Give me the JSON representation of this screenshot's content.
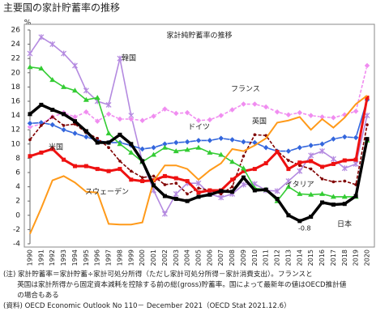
{
  "chart_data": {
    "type": "line",
    "title": "主要国の家計貯蓄率の推移",
    "subtitle": "家計純貯蓄率の推移",
    "y_unit": "%",
    "categories": [
      "1990",
      "1991",
      "1992",
      "1993",
      "1994",
      "1995",
      "1996",
      "1997",
      "1998",
      "1999",
      "2000",
      "2001",
      "2002",
      "2003",
      "2004",
      "2005",
      "2006",
      "2007",
      "2008",
      "2009",
      "2010",
      "2011",
      "2012",
      "2013",
      "2014",
      "2015",
      "2016",
      "2017",
      "2018",
      "2019",
      "2020"
    ],
    "ylim": [
      -4,
      26
    ],
    "yticks": [
      -4,
      -2,
      0,
      2,
      4,
      6,
      8,
      10,
      12,
      14,
      16,
      18,
      20,
      22,
      24,
      26
    ],
    "series": [
      {
        "name": "韓国",
        "color": "#b48ae0",
        "marker": "star",
        "values": [
          22.7,
          25,
          24,
          22.7,
          21,
          17.5,
          16,
          15.5,
          22,
          14,
          7.5,
          3.5,
          0.2,
          3,
          4.5,
          4.5,
          3,
          2.5,
          3,
          4.3,
          4.4,
          3.5,
          3.4,
          4.8,
          6.2,
          8.4,
          9.0,
          7.9,
          6.6,
          7.2,
          14
        ]
      },
      {
        "name": "フランス",
        "color": "#f08cf0",
        "marker": "diamond",
        "dash": true,
        "values": [
          12.4,
          12.8,
          13.8,
          14.4,
          13.8,
          14.5,
          13.2,
          14.2,
          13.5,
          13.5,
          13.3,
          13.9,
          14.9,
          14.3,
          14.4,
          13.3,
          13.4,
          14.0,
          14.8,
          15.6,
          15.6,
          15.2,
          14.5,
          14.1,
          14.4,
          14.0,
          13.8,
          13.7,
          14.1,
          14.6,
          21.0
        ]
      },
      {
        "name": "ドイツ",
        "color": "#3366dd",
        "marker": "diamond",
        "values": [
          12.9,
          13.0,
          12.7,
          12.0,
          11.5,
          11.0,
          10.5,
          10.2,
          10.2,
          9.8,
          9.3,
          9.5,
          10.0,
          10.2,
          10.3,
          10.5,
          10.5,
          10.8,
          10.6,
          10.3,
          10.2,
          9.5,
          9.0,
          9.0,
          9.5,
          9.8,
          10.0,
          10.7,
          11.0,
          10.9,
          16.2
        ]
      },
      {
        "name": "英国",
        "color": "#800000",
        "marker": "dot",
        "dash": true,
        "values": [
          10.6,
          12.6,
          13.8,
          12.6,
          12.8,
          11.6,
          10.8,
          9.5,
          7.6,
          6.2,
          5.3,
          5.5,
          4.3,
          4.5,
          3.0,
          3.8,
          3.5,
          3.0,
          4.0,
          8.3,
          11.3,
          11.2,
          9.0,
          7.7,
          7.0,
          6.5,
          5.1,
          4.7,
          4.8,
          4.3,
          12.7
        ]
      },
      {
        "name": "米国",
        "color": "#ee1111",
        "marker": "square",
        "width": 3,
        "values": [
          8.3,
          8.8,
          9.3,
          7.8,
          6.9,
          6.9,
          6.5,
          6.2,
          6.5,
          5.0,
          4.8,
          4.9,
          5.5,
          5.2,
          4.8,
          3.2,
          3.5,
          3.5,
          5.0,
          6.2,
          6.5,
          7.3,
          8.9,
          6.5,
          7.4,
          7.6,
          6.8,
          7.2,
          7.7,
          7.8,
          16.5
        ]
      },
      {
        "name": "イタリア",
        "color": "#33cc33",
        "marker": "triangle",
        "values": [
          20.8,
          20.6,
          19,
          18,
          17.5,
          16.2,
          16.5,
          11.5,
          10,
          8.8,
          7.5,
          8.5,
          9.5,
          9.0,
          9.2,
          9.5,
          8.8,
          8.5,
          7.5,
          6.6,
          3.8,
          3.6,
          2.0,
          4.0,
          3.0,
          2.9,
          3.0,
          2.6,
          2.6,
          2.6,
          10.5
        ]
      },
      {
        "name": "スウェーデン",
        "color": "#ff9a1a",
        "marker": "none",
        "width": 2,
        "values": [
          -2.6,
          1.0,
          4.9,
          5.5,
          4.6,
          3.3,
          3.2,
          -1.2,
          -1.3,
          -1.3,
          -1.0,
          4.8,
          7.0,
          7.0,
          6.5,
          5.0,
          6.3,
          7.3,
          9.3,
          9.0,
          9.8,
          10.8,
          13.0,
          13.3,
          13.8,
          12.0,
          13.5,
          12.3,
          13.7,
          15.6,
          16.8
        ]
      },
      {
        "name": "日本",
        "color": "#000000",
        "marker": "square",
        "width": 3.5,
        "values": [
          14.2,
          15.5,
          14.8,
          14.2,
          13.2,
          11.8,
          10.2,
          10.2,
          11.3,
          10.0,
          7.6,
          4.2,
          2.7,
          2.3,
          2.0,
          2.6,
          2.9,
          3.4,
          3.3,
          5.3,
          3.5,
          3.6,
          2.3,
          0,
          -0.8,
          -0.2,
          1.8,
          1.5,
          1.6,
          2.7,
          10.7
        ]
      }
    ],
    "annotation": "-0.8",
    "notes": [
      "(注) 家計貯蓄率＝家計貯蓄÷家計可処分所得（ただし家計可処分所得－家計消費支出）。フランスと",
      "　　英国は家計所得から固定資本減耗を控除する前の総(gross)貯蓄率。国によって最新年の値はOECD推計値",
      "　　の場合もある",
      "(資料) OECD Economic Outlook No 110－ December 2021（OECD Stat 2021.12.6）"
    ]
  }
}
